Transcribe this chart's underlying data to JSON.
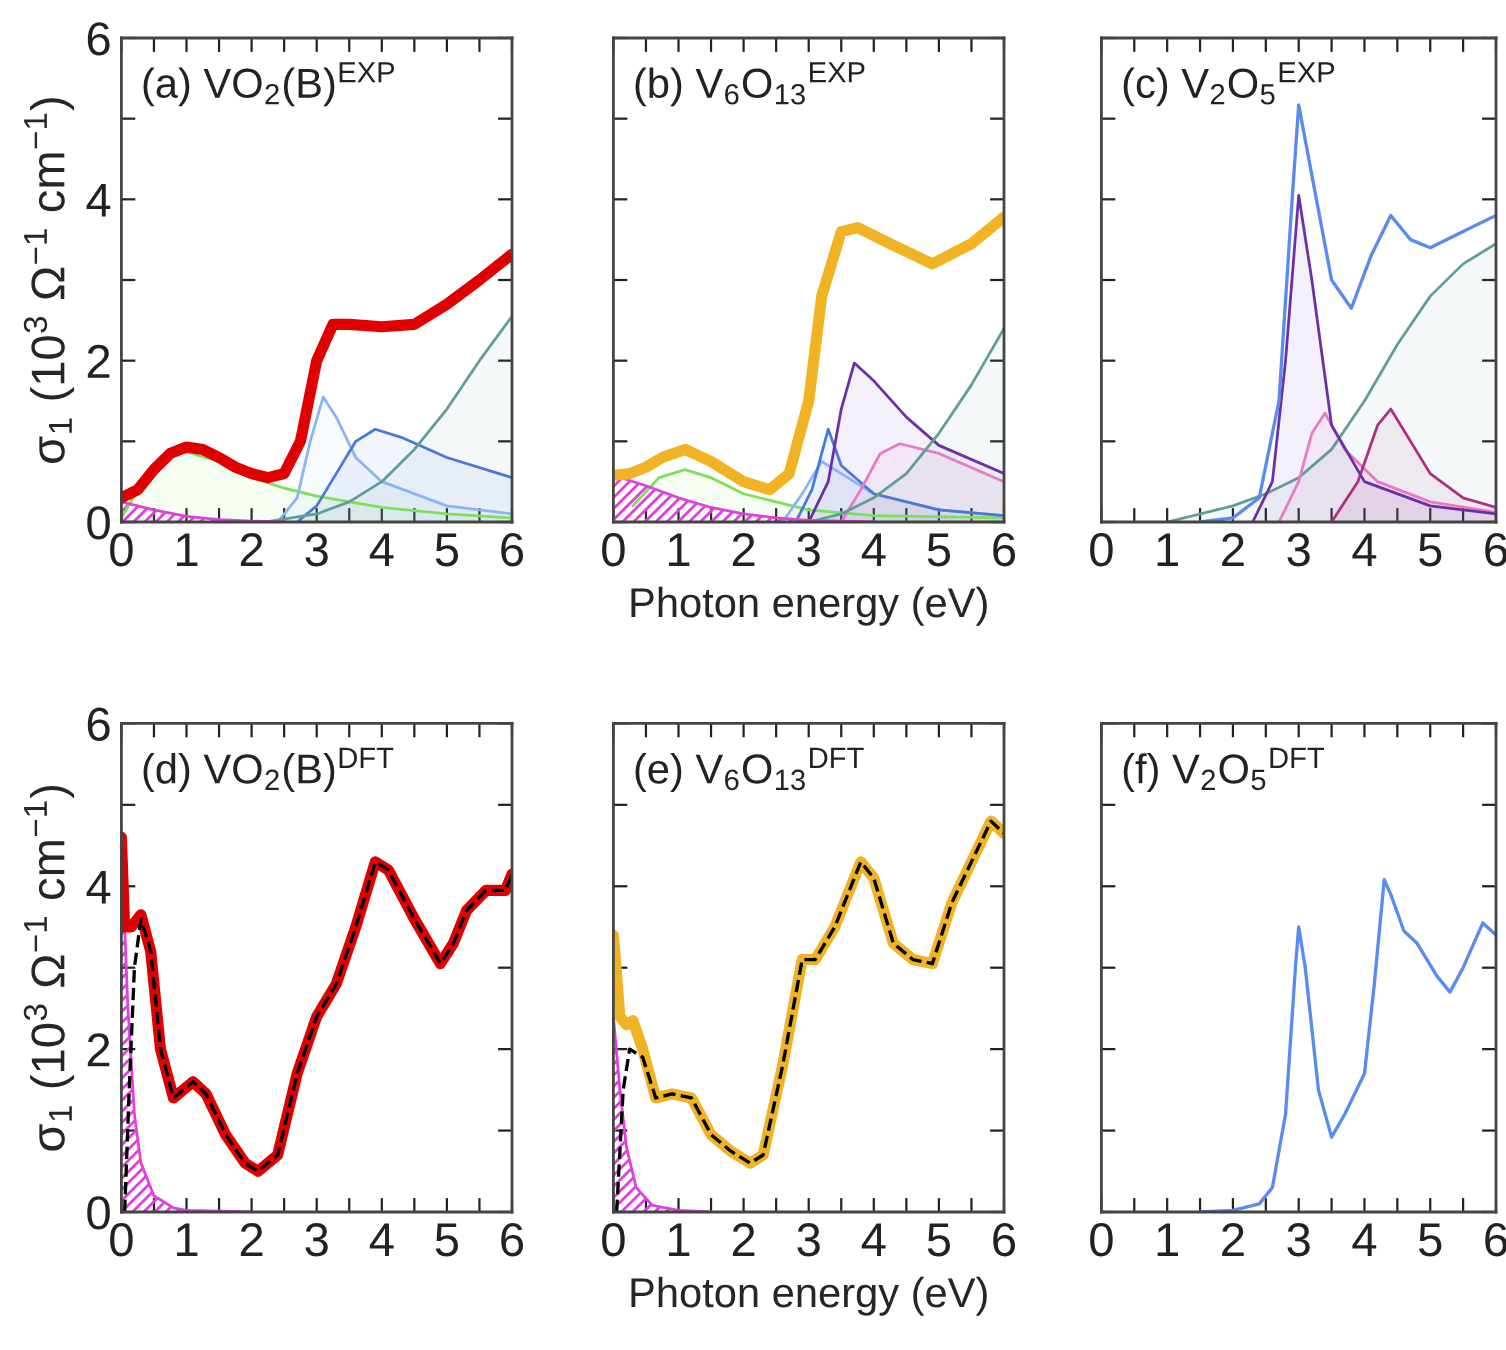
{
  "chart_data": [
    {
      "type": "line",
      "title": "(a) VO$_{2}$(B)$^{EXP}$",
      "ylabel": "σ$_{1}$ (10$^{3}$ Ω$^{−1}$ cm$^{−1}$)",
      "xlim": [
        0,
        6
      ],
      "ylim": [
        0,
        6
      ],
      "xticks": [
        0,
        {
          "value": 0.5,
          "label": null
        },
        1,
        {
          "value": 1.5,
          "label": null
        },
        2,
        {
          "value": 2.5,
          "label": null
        },
        3,
        {
          "value": 3.5,
          "label": null
        },
        4,
        {
          "value": 4.5,
          "label": null
        },
        5,
        {
          "value": 5.5,
          "label": null
        },
        6
      ],
      "yticks": [
        0,
        {
          "value": 1,
          "label": null
        },
        2,
        {
          "value": 3,
          "label": null
        },
        4,
        {
          "value": 5,
          "label": null
        },
        6
      ],
      "series": [
        {
          "type": "area",
          "color": "#7ce05a",
          "x": [
            0,
            0.25,
            0.5,
            0.75,
            1,
            1.5,
            2,
            2.5,
            3,
            4,
            5,
            6
          ],
          "values": [
            0.05,
            0.4,
            0.7,
            0.85,
            0.87,
            0.75,
            0.55,
            0.42,
            0.32,
            0.18,
            0.1,
            0.05
          ]
        },
        {
          "type": "area",
          "color": "#8cb4f5",
          "x": [
            2.4,
            2.7,
            2.9,
            3.1,
            3.3,
            3.6,
            4,
            5,
            6
          ],
          "values": [
            0,
            0.3,
            1.0,
            1.55,
            1.3,
            0.8,
            0.5,
            0.2,
            0.1
          ]
        },
        {
          "type": "area",
          "color": "#4a78d8",
          "x": [
            2.7,
            3,
            3.3,
            3.6,
            3.9,
            4.3,
            5,
            6
          ],
          "values": [
            0,
            0.2,
            0.6,
            1.0,
            1.15,
            1.05,
            0.8,
            0.55
          ]
        },
        {
          "type": "area",
          "color": "#5f9e9a",
          "x": [
            2.2,
            3,
            3.5,
            4,
            4.5,
            5,
            5.5,
            6
          ],
          "values": [
            0,
            0.1,
            0.25,
            0.5,
            0.9,
            1.4,
            2.0,
            2.55
          ]
        },
        {
          "type": "area",
          "color": "#e040e0",
          "x": [
            0,
            0.5,
            1,
            1.5,
            2,
            2.5
          ],
          "values": [
            0.25,
            0.15,
            0.07,
            0.03,
            0.01,
            0
          ]
        },
        {
          "type": "line",
          "color": "#e00000",
          "x": [
            0,
            0.25,
            0.5,
            0.75,
            1,
            1.25,
            1.5,
            1.75,
            2,
            2.25,
            2.5,
            2.75,
            3,
            3.25,
            3.5,
            4,
            4.5,
            5,
            5.5,
            6
          ],
          "values": [
            0.3,
            0.4,
            0.65,
            0.85,
            0.93,
            0.9,
            0.8,
            0.68,
            0.6,
            0.55,
            0.6,
            1.0,
            2.0,
            2.45,
            2.45,
            2.42,
            2.45,
            2.7,
            3.0,
            3.32
          ]
        }
      ]
    },
    {
      "type": "line",
      "title": "(b) V$_{6}$O$_{13}$$^{EXP}$",
      "xlabel": "Photon energy (eV)",
      "tick_labels": "x",
      "xlim": [
        0,
        6
      ],
      "ylim": [
        0,
        6
      ],
      "xticks": [
        0,
        {
          "value": 0.5,
          "label": null
        },
        1,
        {
          "value": 1.5,
          "label": null
        },
        2,
        {
          "value": 2.5,
          "label": null
        },
        3,
        {
          "value": 3.5,
          "label": null
        },
        4,
        {
          "value": 4.5,
          "label": null
        },
        5,
        {
          "value": 5.5,
          "label": null
        },
        6
      ],
      "yticks": [
        0,
        {
          "value": 1,
          "label": null
        },
        2,
        {
          "value": 3,
          "label": null
        },
        4,
        {
          "value": 5,
          "label": null
        },
        6
      ],
      "series": [
        {
          "type": "area",
          "color": "#7ce05a",
          "x": [
            0.3,
            0.7,
            1.1,
            1.5,
            2,
            2.5,
            3,
            4,
            6
          ],
          "values": [
            0.2,
            0.55,
            0.65,
            0.55,
            0.35,
            0.25,
            0.15,
            0.08,
            0.05
          ]
        },
        {
          "type": "area",
          "color": "#8cb4f5",
          "x": [
            2.6,
            2.9,
            3.2,
            3.5,
            4,
            5,
            6
          ],
          "values": [
            0,
            0.35,
            0.75,
            0.6,
            0.35,
            0.15,
            0.08
          ]
        },
        {
          "type": "area",
          "color": "#4a78d8",
          "x": [
            2.8,
            3.05,
            3.3,
            3.5,
            4,
            5,
            6
          ],
          "values": [
            0,
            0.4,
            1.15,
            0.7,
            0.35,
            0.15,
            0.08
          ]
        },
        {
          "type": "area",
          "color": "#6a30a8",
          "x": [
            3,
            3.3,
            3.5,
            3.7,
            4,
            4.5,
            5,
            6
          ],
          "values": [
            0,
            0.5,
            1.4,
            1.97,
            1.75,
            1.3,
            0.95,
            0.6
          ]
        },
        {
          "type": "area",
          "color": "#e87ac0",
          "x": [
            3.5,
            3.8,
            4.1,
            4.4,
            5,
            6
          ],
          "values": [
            0,
            0.4,
            0.85,
            0.97,
            0.85,
            0.5
          ]
        },
        {
          "type": "area",
          "color": "#5f9e9a",
          "x": [
            3,
            3.5,
            4,
            4.5,
            5,
            5.5,
            6
          ],
          "values": [
            0,
            0.1,
            0.3,
            0.6,
            1.1,
            1.7,
            2.4
          ]
        },
        {
          "type": "area",
          "color": "#e040e0",
          "x": [
            0,
            0.5,
            1,
            1.5,
            2,
            2.5,
            3,
            4
          ],
          "values": [
            0.58,
            0.45,
            0.3,
            0.18,
            0.1,
            0.05,
            0.02,
            0
          ]
        },
        {
          "type": "line",
          "color": "#f0b323",
          "x": [
            0,
            0.25,
            0.5,
            0.75,
            1.1,
            1.5,
            2,
            2.4,
            2.7,
            3,
            3.2,
            3.5,
            3.75,
            4.25,
            4.9,
            5.5,
            6
          ],
          "values": [
            0.58,
            0.6,
            0.68,
            0.8,
            0.9,
            0.75,
            0.5,
            0.4,
            0.6,
            1.5,
            2.8,
            3.6,
            3.65,
            3.45,
            3.2,
            3.45,
            3.78
          ]
        }
      ]
    },
    {
      "type": "line",
      "title": "(c) V$_{2}$O$_{5}$$^{EXP}$",
      "tick_labels": "x",
      "xlim": [
        0,
        6
      ],
      "ylim": [
        0,
        6
      ],
      "xticks": [
        0,
        {
          "value": 0.5,
          "label": null
        },
        1,
        {
          "value": 1.5,
          "label": null
        },
        2,
        {
          "value": 2.5,
          "label": null
        },
        3,
        {
          "value": 3.5,
          "label": null
        },
        4,
        {
          "value": 4.5,
          "label": null
        },
        5,
        {
          "value": 5.5,
          "label": null
        },
        6
      ],
      "yticks": [
        0,
        {
          "value": 1,
          "label": null
        },
        2,
        {
          "value": 3,
          "label": null
        },
        4,
        {
          "value": 5,
          "label": null
        },
        6
      ],
      "series": [
        {
          "type": "area",
          "color": "#5f9e9a",
          "x": [
            1,
            2,
            2.5,
            3,
            3.5,
            4,
            4.5,
            5,
            5.5,
            6
          ],
          "values": [
            0,
            0.2,
            0.35,
            0.55,
            0.9,
            1.5,
            2.2,
            2.8,
            3.2,
            3.45
          ]
        },
        {
          "type": "area",
          "color": "#e87ac0",
          "x": [
            2.7,
            3.0,
            3.2,
            3.4,
            3.7,
            4.2,
            5,
            6
          ],
          "values": [
            0,
            0.5,
            1.1,
            1.35,
            0.9,
            0.5,
            0.25,
            0.12
          ]
        },
        {
          "type": "area",
          "color": "#b03080",
          "x": [
            3.5,
            3.9,
            4.2,
            4.4,
            4.7,
            5,
            5.5,
            6
          ],
          "values": [
            0,
            0.5,
            1.2,
            1.4,
            1.0,
            0.6,
            0.3,
            0.18
          ]
        },
        {
          "type": "area",
          "color": "#6a30a8",
          "x": [
            2.3,
            2.6,
            2.8,
            3.0,
            3.2,
            3.5,
            4,
            5,
            6
          ],
          "values": [
            0,
            0.5,
            2.0,
            4.05,
            3.0,
            1.2,
            0.5,
            0.2,
            0.1
          ]
        },
        {
          "type": "line",
          "color": "#5a8cf0",
          "x": [
            1.5,
            2,
            2.4,
            2.7,
            2.9,
            3.0,
            3.2,
            3.5,
            3.8,
            4.1,
            4.4,
            4.7,
            5.0,
            5.5,
            6.0
          ],
          "values": [
            0,
            0.05,
            0.3,
            1.5,
            4.0,
            5.17,
            4.3,
            3.0,
            2.65,
            3.3,
            3.8,
            3.5,
            3.4,
            3.6,
            3.8
          ]
        }
      ]
    },
    {
      "type": "line",
      "title": "(d) VO$_{2}$(B)$^{DFT}$",
      "ylabel": "σ$_{1}$ (10$^{3}$ Ω$^{−1}$ cm$^{−1}$)",
      "xlim": [
        0,
        6
      ],
      "ylim": [
        0,
        6
      ],
      "xticks": [
        0,
        {
          "value": 0.5,
          "label": null
        },
        1,
        {
          "value": 1.5,
          "label": null
        },
        2,
        {
          "value": 2.5,
          "label": null
        },
        3,
        {
          "value": 3.5,
          "label": null
        },
        4,
        {
          "value": 4.5,
          "label": null
        },
        5,
        {
          "value": 5.5,
          "label": null
        },
        6
      ],
      "yticks": [
        0,
        {
          "value": 1,
          "label": null
        },
        2,
        {
          "value": 3,
          "label": null
        },
        4,
        {
          "value": 5,
          "label": null
        },
        6
      ],
      "series": [
        {
          "type": "area",
          "color": "#e040e0",
          "x": [
            0,
            0.1,
            0.2,
            0.3,
            0.5,
            0.8,
            1,
            2
          ],
          "values": [
            4.5,
            2.5,
            1.2,
            0.6,
            0.2,
            0.05,
            0.02,
            0
          ]
        },
        {
          "type": "line",
          "color": "#e00000",
          "x": [
            0,
            0.05,
            0.15,
            0.3,
            0.45,
            0.6,
            0.8,
            1.1,
            1.3,
            1.6,
            1.9,
            2.1,
            2.4,
            2.7,
            3.0,
            3.3,
            3.6,
            3.9,
            4.1,
            4.5,
            4.9,
            5.1,
            5.3,
            5.6,
            5.9,
            6
          ],
          "values": [
            4.6,
            3.5,
            3.5,
            3.65,
            3.2,
            2.0,
            1.4,
            1.6,
            1.45,
            0.95,
            0.6,
            0.5,
            0.7,
            1.7,
            2.4,
            2.8,
            3.5,
            4.3,
            4.2,
            3.6,
            3.05,
            3.3,
            3.7,
            3.95,
            3.95,
            4.15
          ]
        },
        {
          "type": "line",
          "line_style": "dashed",
          "color": "#000000",
          "x": [
            0.05,
            0.12,
            0.2,
            0.3,
            0.45,
            0.6,
            0.8,
            1.1,
            1.3,
            1.6,
            1.9,
            2.1,
            2.4,
            2.7,
            3.0,
            3.3,
            3.6,
            3.9,
            4.1,
            4.5,
            4.9,
            5.1,
            5.3,
            5.6,
            5.9,
            6
          ],
          "values": [
            0,
            1.5,
            3.0,
            3.6,
            3.2,
            2.0,
            1.4,
            1.6,
            1.45,
            0.95,
            0.6,
            0.5,
            0.7,
            1.7,
            2.4,
            2.8,
            3.5,
            4.3,
            4.2,
            3.6,
            3.05,
            3.3,
            3.7,
            3.95,
            3.95,
            4.15
          ]
        }
      ]
    },
    {
      "type": "line",
      "title": "(e) V$_{6}$O$_{13}$$^{DFT}$",
      "xlabel": "Photon energy (eV)",
      "tick_labels": "x",
      "xlim": [
        0,
        6
      ],
      "ylim": [
        0,
        6
      ],
      "xticks": [
        0,
        {
          "value": 0.5,
          "label": null
        },
        1,
        {
          "value": 1.5,
          "label": null
        },
        2,
        {
          "value": 2.5,
          "label": null
        },
        3,
        {
          "value": 3.5,
          "label": null
        },
        4,
        {
          "value": 4.5,
          "label": null
        },
        5,
        {
          "value": 5.5,
          "label": null
        },
        6
      ],
      "yticks": [
        0,
        {
          "value": 1,
          "label": null
        },
        2,
        {
          "value": 3,
          "label": null
        },
        4,
        {
          "value": 5,
          "label": null
        },
        6
      ],
      "series": [
        {
          "type": "area",
          "color": "#e040e0",
          "x": [
            0,
            0.1,
            0.2,
            0.35,
            0.6,
            1,
            1.5
          ],
          "values": [
            2.4,
            1.5,
            0.8,
            0.3,
            0.08,
            0.02,
            0
          ]
        },
        {
          "type": "line",
          "color": "#f0b323",
          "x": [
            0,
            0.1,
            0.2,
            0.3,
            0.45,
            0.65,
            0.9,
            1.2,
            1.5,
            1.8,
            2.1,
            2.3,
            2.6,
            2.9,
            3.1,
            3.4,
            3.8,
            4.0,
            4.3,
            4.6,
            4.9,
            5.2,
            5.5,
            5.8,
            6
          ],
          "values": [
            3.4,
            2.4,
            2.3,
            2.35,
            2.0,
            1.4,
            1.45,
            1.4,
            0.95,
            0.75,
            0.6,
            0.7,
            1.8,
            3.1,
            3.1,
            3.5,
            4.3,
            4.1,
            3.3,
            3.1,
            3.05,
            3.8,
            4.3,
            4.8,
            4.65
          ]
        },
        {
          "type": "line",
          "line_style": "dashed",
          "color": "#000000",
          "x": [
            0.05,
            0.15,
            0.25,
            0.45,
            0.65,
            0.9,
            1.2,
            1.5,
            1.8,
            2.1,
            2.3,
            2.6,
            2.9,
            3.1,
            3.4,
            3.8,
            4.0,
            4.3,
            4.6,
            4.9,
            5.2,
            5.5,
            5.8,
            6
          ],
          "values": [
            0,
            1.5,
            2.0,
            1.9,
            1.4,
            1.45,
            1.4,
            0.95,
            0.75,
            0.6,
            0.7,
            1.8,
            3.1,
            3.1,
            3.5,
            4.3,
            4.1,
            3.3,
            3.1,
            3.05,
            3.8,
            4.3,
            4.8,
            4.65
          ]
        }
      ]
    },
    {
      "type": "line",
      "title": "(f) V$_{2}$O$_{5}$$^{DFT}$",
      "tick_labels": "x",
      "xlim": [
        0,
        6
      ],
      "ylim": [
        0,
        6
      ],
      "xticks": [
        0,
        {
          "value": 0.5,
          "label": null
        },
        1,
        {
          "value": 1.5,
          "label": null
        },
        2,
        {
          "value": 2.5,
          "label": null
        },
        3,
        {
          "value": 3.5,
          "label": null
        },
        4,
        {
          "value": 4.5,
          "label": null
        },
        5,
        {
          "value": 5.5,
          "label": null
        },
        6
      ],
      "yticks": [
        0,
        {
          "value": 1,
          "label": null
        },
        2,
        {
          "value": 3,
          "label": null
        },
        4,
        {
          "value": 5,
          "label": null
        },
        6
      ],
      "series": [
        {
          "type": "line",
          "color": "#5a8cf0",
          "x": [
            1.5,
            2.0,
            2.4,
            2.6,
            2.8,
            2.95,
            3.0,
            3.1,
            3.3,
            3.5,
            3.7,
            4.0,
            4.15,
            4.3,
            4.4,
            4.6,
            4.8,
            5.1,
            5.3,
            5.5,
            5.8,
            6.0
          ],
          "values": [
            0,
            0.02,
            0.1,
            0.3,
            1.2,
            3.0,
            3.5,
            3.0,
            1.5,
            0.92,
            1.2,
            1.7,
            2.8,
            4.08,
            3.9,
            3.45,
            3.3,
            2.9,
            2.7,
            3.0,
            3.55,
            3.4
          ]
        }
      ]
    }
  ]
}
